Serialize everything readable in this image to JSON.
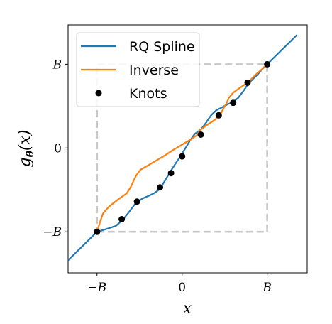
{
  "chart_data": {
    "type": "line",
    "title": "",
    "xlabel": "x",
    "ylabel_main": "g",
    "ylabel_sub": "θ",
    "ylabel_arg": "(x)",
    "xlim": [
      -1.34,
      1.47
    ],
    "ylim": [
      -1.49,
      1.47
    ],
    "x_ticks": [
      {
        "value": -1,
        "label": "−B"
      },
      {
        "value": 0,
        "label": "0"
      },
      {
        "value": 1,
        "label": "B"
      }
    ],
    "y_ticks": [
      {
        "value": -1,
        "label": "−B"
      },
      {
        "value": 0,
        "label": "0"
      },
      {
        "value": 1,
        "label": "B"
      }
    ],
    "grid": false,
    "legend_position": "top-left",
    "box": {
      "xmin": -1,
      "xmax": 1,
      "ymin": -1,
      "ymax": 1,
      "color": "#c8c8c8"
    },
    "series": [
      {
        "name": "RQ Spline",
        "color": "#1f77b4",
        "type": "line",
        "x": [
          -1.34,
          -1.0,
          -0.9,
          -0.78,
          -0.7,
          -0.62,
          -0.54,
          -0.46,
          -0.39,
          -0.33,
          -0.26,
          -0.19,
          -0.13,
          -0.08,
          -0.02,
          0.04,
          0.1,
          0.15,
          0.22,
          0.28,
          0.34,
          0.4,
          0.44,
          0.48,
          0.53,
          0.6,
          0.66,
          0.72,
          0.78,
          0.83,
          0.89,
          0.95,
          1.0,
          1.35
        ],
        "y": [
          -1.34,
          -1.0,
          -0.97,
          -0.93,
          -0.86,
          -0.76,
          -0.65,
          -0.6,
          -0.57,
          -0.54,
          -0.49,
          -0.37,
          -0.27,
          -0.19,
          -0.1,
          0.0,
          0.1,
          0.17,
          0.22,
          0.3,
          0.39,
          0.45,
          0.47,
          0.49,
          0.52,
          0.55,
          0.6,
          0.68,
          0.77,
          0.82,
          0.88,
          0.95,
          1.0,
          1.35
        ]
      },
      {
        "name": "Inverse",
        "color": "#ff7f0e",
        "type": "line",
        "x": [
          -1.0,
          -0.97,
          -0.93,
          -0.86,
          -0.76,
          -0.65,
          -0.6,
          -0.57,
          -0.54,
          -0.49,
          -0.37,
          -0.27,
          -0.19,
          -0.1,
          0.0,
          0.1,
          0.17,
          0.22,
          0.3,
          0.39,
          0.45,
          0.47,
          0.49,
          0.52,
          0.55,
          0.6,
          0.68,
          0.77,
          0.82,
          0.88,
          0.95,
          1.0
        ],
        "y": [
          -1.0,
          -0.9,
          -0.78,
          -0.7,
          -0.62,
          -0.54,
          -0.46,
          -0.39,
          -0.33,
          -0.26,
          -0.19,
          -0.13,
          -0.08,
          -0.02,
          0.04,
          0.1,
          0.15,
          0.22,
          0.28,
          0.34,
          0.4,
          0.44,
          0.48,
          0.53,
          0.6,
          0.66,
          0.72,
          0.78,
          0.83,
          0.89,
          0.95,
          1.0
        ]
      },
      {
        "name": "Knots",
        "color": "#000000",
        "type": "scatter",
        "x": [
          -1.0,
          -0.71,
          -0.53,
          -0.26,
          -0.13,
          0.0,
          0.22,
          0.43,
          0.6,
          0.77,
          1.0
        ],
        "y": [
          -1.0,
          -0.85,
          -0.64,
          -0.47,
          -0.3,
          -0.1,
          0.16,
          0.39,
          0.54,
          0.78,
          1.0
        ]
      }
    ]
  }
}
